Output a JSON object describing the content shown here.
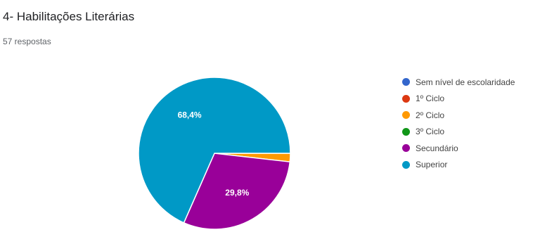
{
  "header": {
    "title": "4- Habilitações Literárias",
    "responses": "57 respostas"
  },
  "chart_data": {
    "type": "pie",
    "title": "4- Habilitações Literárias",
    "categories": [
      "Sem nível de escolaridade",
      "1º Ciclo",
      "2º Ciclo",
      "3º Ciclo",
      "Secundário",
      "Superior"
    ],
    "values": [
      0,
      0,
      1.8,
      0,
      29.8,
      68.4
    ],
    "colors": [
      "#3366cc",
      "#dc3912",
      "#ff9900",
      "#109618",
      "#990099",
      "#0099c6"
    ],
    "data_labels": [
      "",
      "",
      "",
      "",
      "29,8%",
      "68,4%"
    ],
    "legend_position": "right"
  }
}
